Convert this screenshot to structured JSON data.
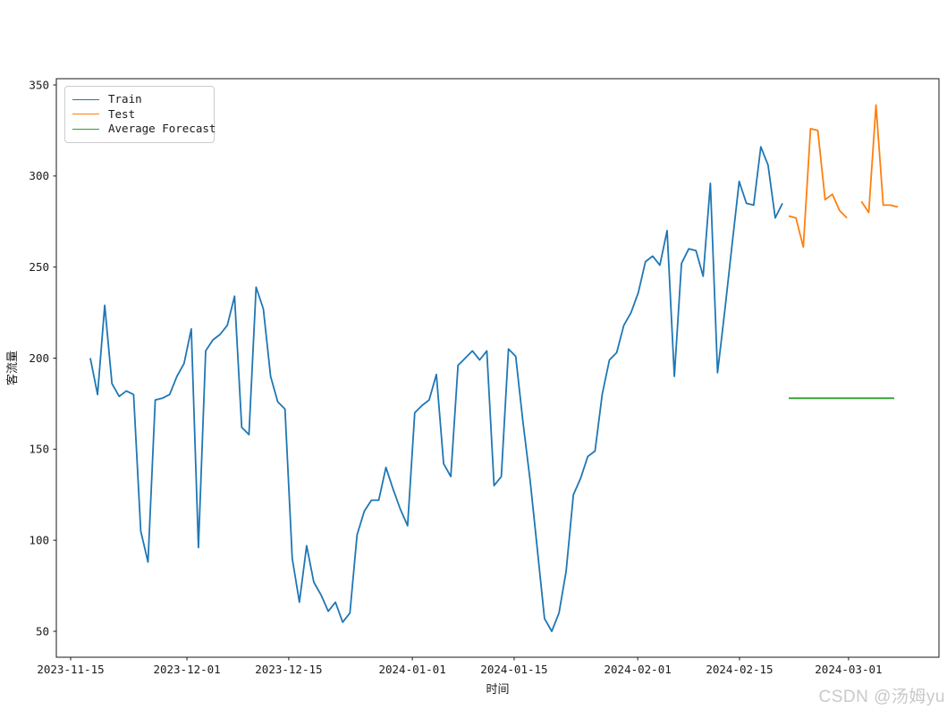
{
  "figure": {
    "background": "#ffffff"
  },
  "watermark": {
    "text": "CSDN @汤姆yu",
    "color": "#c9c9c9"
  },
  "chart_data": {
    "type": "line",
    "title": "",
    "xlabel": "时间",
    "ylabel": "客流量",
    "grid": false,
    "legend": {
      "position": "upper-left",
      "entries": [
        "Train",
        "Test",
        "Average Forecast"
      ]
    },
    "y_ticks": [
      50,
      100,
      150,
      200,
      250,
      300,
      350
    ],
    "ylim": [
      36,
      353
    ],
    "x_ticks": [
      {
        "label": "2023-11-15",
        "day": 0
      },
      {
        "label": "2023-12-01",
        "day": 16
      },
      {
        "label": "2023-12-15",
        "day": 30
      },
      {
        "label": "2024-01-01",
        "day": 47
      },
      {
        "label": "2024-01-15",
        "day": 61
      },
      {
        "label": "2024-02-01",
        "day": 78
      },
      {
        "label": "2024-02-15",
        "day": 92
      },
      {
        "label": "2024-03-01",
        "day": 107
      }
    ],
    "series": [
      {
        "name": "Train",
        "color": "#1f77b4",
        "approx_range": "2023-11-18 to 2024-02-22 (daily)",
        "values": [
          200,
          180,
          229,
          186,
          179,
          182,
          180,
          105,
          88,
          177,
          178,
          180,
          190,
          197,
          216,
          96,
          204,
          210,
          213,
          218,
          234,
          162,
          158,
          239,
          227,
          190,
          176,
          172,
          90,
          66,
          97,
          77,
          70,
          61,
          66,
          55,
          60,
          103,
          116,
          122,
          122,
          140,
          128,
          117,
          108,
          170,
          174,
          177,
          191,
          142,
          135,
          196,
          200,
          204,
          199,
          204,
          130,
          135,
          205,
          201,
          165,
          133,
          95,
          57,
          50,
          60,
          83,
          125,
          134,
          146,
          149,
          180,
          199,
          203,
          218,
          225,
          236,
          253,
          256,
          251,
          270,
          190,
          252,
          260,
          259,
          245,
          296,
          192,
          226,
          262,
          297,
          285,
          284,
          316,
          306,
          277,
          285
        ]
      },
      {
        "name": "Test",
        "color": "#ff7f0e",
        "approx_range": "2024-02-22 to 2024-03-08 (daily, one missing point)",
        "values": [
          278,
          277,
          261,
          326,
          325,
          287,
          290,
          281,
          277,
          null,
          286,
          280,
          339,
          284,
          284,
          283
        ]
      },
      {
        "name": "Average Forecast",
        "color": "#2ca02c",
        "approx_range": "2024-02-22 to 2024-03-07 (constant)",
        "values": [
          178,
          178
        ]
      }
    ]
  }
}
